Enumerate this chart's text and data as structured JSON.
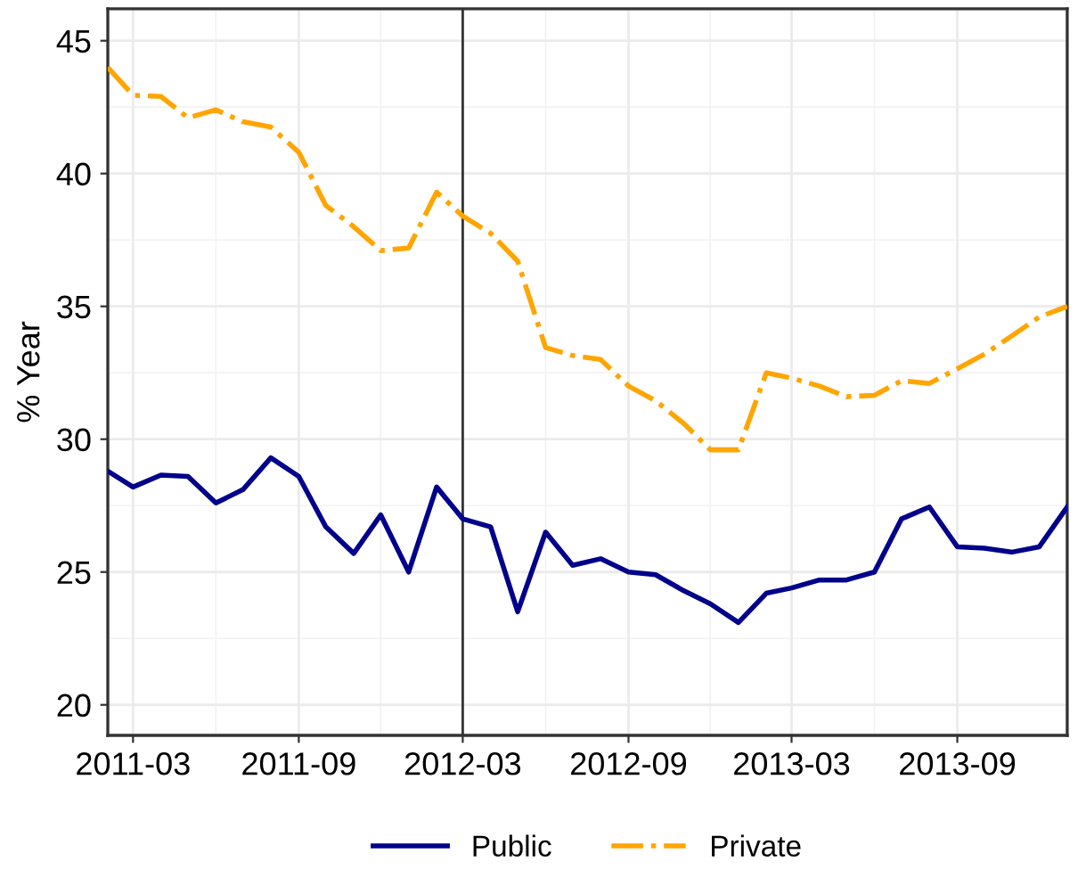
{
  "chart_data": {
    "type": "line",
    "ylabel": "% Year",
    "x": [
      "2011-02",
      "2011-03",
      "2011-04",
      "2011-05",
      "2011-06",
      "2011-07",
      "2011-08",
      "2011-09",
      "2011-10",
      "2011-11",
      "2011-12",
      "2012-01",
      "2012-02",
      "2012-03",
      "2012-04",
      "2012-05",
      "2012-06",
      "2012-07",
      "2012-08",
      "2012-09",
      "2012-10",
      "2012-11",
      "2012-12",
      "2013-01",
      "2013-02",
      "2013-03",
      "2013-04",
      "2013-05",
      "2013-06",
      "2013-07",
      "2013-08",
      "2013-09",
      "2013-10",
      "2013-11",
      "2013-12",
      "2014-01"
    ],
    "series": [
      {
        "name": "Public",
        "color": "#00008b",
        "line_style": "solid",
        "values": [
          28.8,
          28.2,
          28.65,
          28.6,
          27.6,
          28.1,
          29.3,
          28.6,
          26.7,
          25.7,
          27.15,
          25.0,
          28.2,
          27.0,
          26.7,
          23.5,
          26.5,
          25.25,
          25.5,
          25.0,
          24.9,
          24.3,
          23.8,
          23.1,
          24.2,
          24.4,
          24.7,
          24.7,
          25.0,
          27.0,
          27.45,
          25.95,
          25.9,
          25.75,
          25.95,
          27.45
        ]
      },
      {
        "name": "Private",
        "color": "#ffa500",
        "line_style": "dashdot",
        "values": [
          44.0,
          42.95,
          42.9,
          42.1,
          42.4,
          41.95,
          41.75,
          40.8,
          38.8,
          38.0,
          37.1,
          37.2,
          39.3,
          38.4,
          37.75,
          36.7,
          33.45,
          33.15,
          33.0,
          32.0,
          31.45,
          30.6,
          29.6,
          29.6,
          32.5,
          32.3,
          32.0,
          31.6,
          31.65,
          32.2,
          32.1,
          32.65,
          33.2,
          33.9,
          34.6,
          35.0
        ]
      }
    ],
    "xlim": [
      "2011-02",
      "2014-01"
    ],
    "xticks": [
      "2011-03",
      "2011-09",
      "2012-03",
      "2012-09",
      "2013-03",
      "2013-09"
    ],
    "ylim": [
      18.85,
      46.2
    ],
    "yticks": [
      20,
      25,
      30,
      35,
      40,
      45
    ],
    "ref_lines": [
      {
        "axis": "x",
        "value": "2012-03",
        "color": "#333333",
        "line_style": "solid"
      }
    ],
    "grid": true,
    "legend": "bottom",
    "marker": "none"
  }
}
